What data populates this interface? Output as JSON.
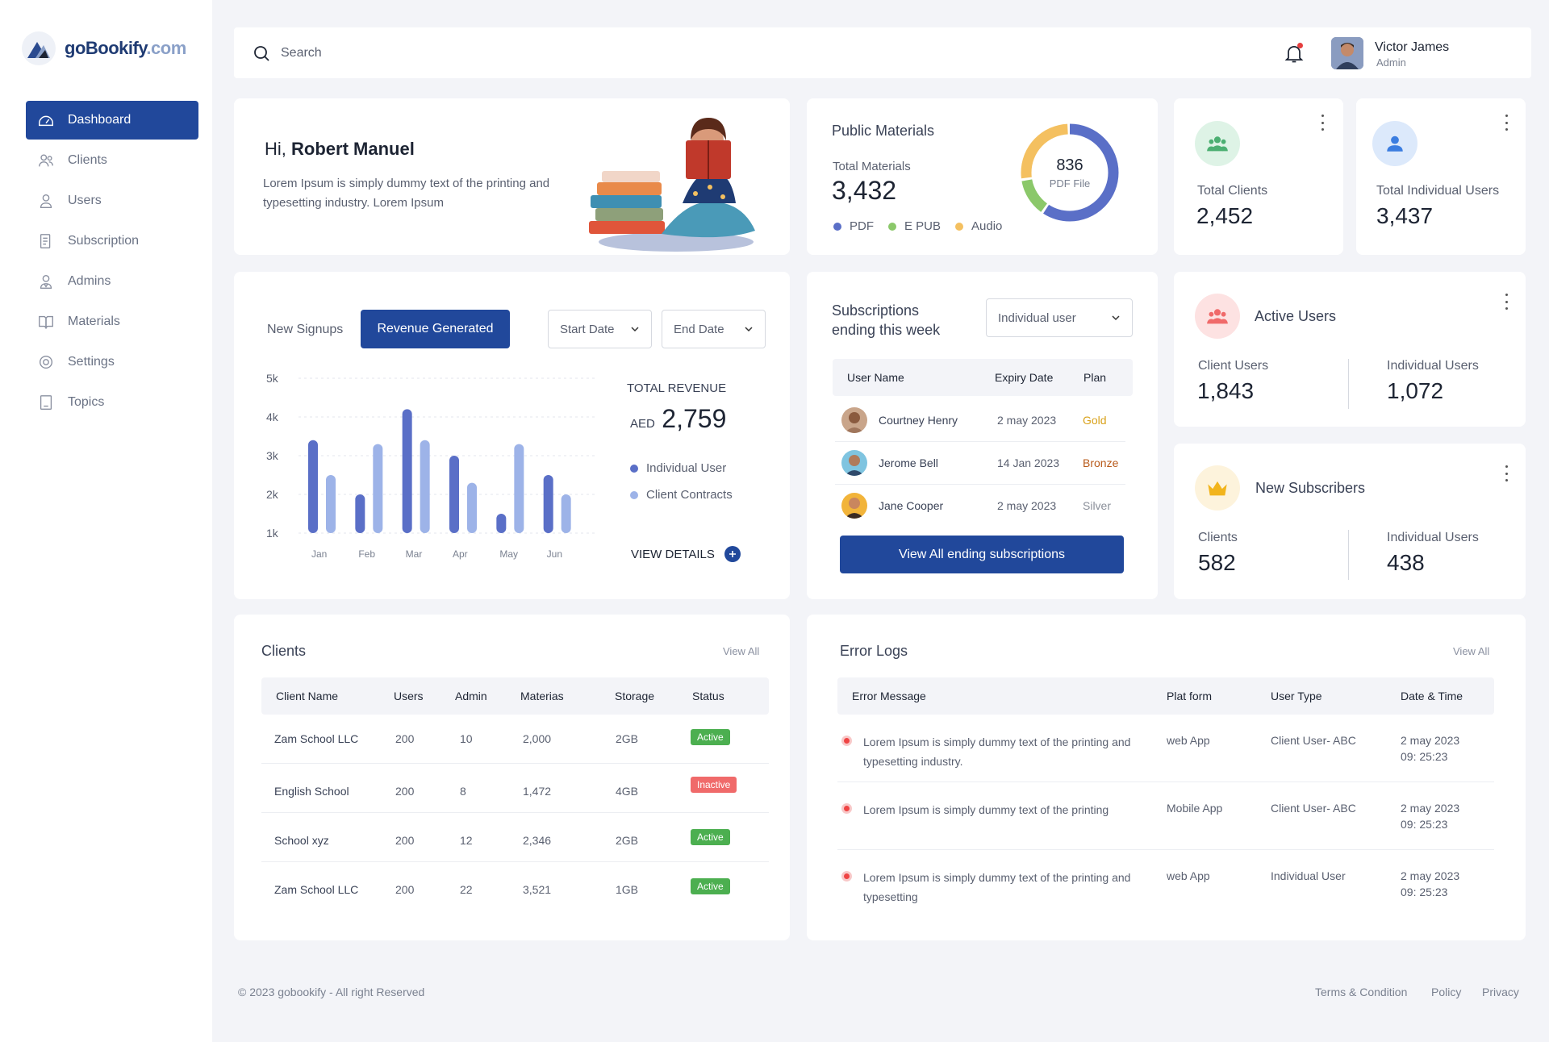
{
  "brand": {
    "name": "goBookify",
    "domain": ".com"
  },
  "sidebar": {
    "items": [
      {
        "label": "Dashboard",
        "icon": "dashboard-icon"
      },
      {
        "label": "Clients",
        "icon": "clients-icon"
      },
      {
        "label": "Users",
        "icon": "user-icon"
      },
      {
        "label": "Subscription",
        "icon": "subscription-icon"
      },
      {
        "label": "Admins",
        "icon": "admin-icon"
      },
      {
        "label": "Materials",
        "icon": "book-icon"
      },
      {
        "label": "Settings",
        "icon": "gear-icon"
      },
      {
        "label": "Topics",
        "icon": "topics-icon"
      }
    ]
  },
  "topbar": {
    "search_placeholder": "Search",
    "user": {
      "name": "Victor James",
      "role": "Admin"
    }
  },
  "welcome": {
    "greeting": "Hi,",
    "name": "Robert Manuel",
    "text": "Lorem Ipsum is simply dummy text of the printing and typesetting industry. Lorem Ipsum"
  },
  "public_materials": {
    "title": "Public Materials",
    "total_label": "Total Materials",
    "total_value": "3,432",
    "donut_value": "836",
    "donut_label": "PDF File",
    "legend": [
      {
        "label": "PDF",
        "color": "#5a6fc7"
      },
      {
        "label": "E PUB",
        "color": "#8bc86a"
      },
      {
        "label": "Audio",
        "color": "#f4c060"
      }
    ],
    "shares": {
      "pdf": 0.6,
      "epub": 0.13,
      "audio": 0.27
    }
  },
  "total_clients": {
    "label": "Total Clients",
    "value": "2,452"
  },
  "total_individual": {
    "label": "Total Individual Users",
    "value": "3,437"
  },
  "revenue": {
    "tab_signups": "New Signups",
    "tab_revenue": "Revenue Generated",
    "start_date": "Start Date",
    "end_date": "End Date",
    "total_label": "TOTAL REVENUE",
    "currency": "AED",
    "total_value": "2,759",
    "legend_individual": "Individual User",
    "legend_client": "Client Contracts",
    "view_details": "VIEW DETAILS"
  },
  "chart_data": {
    "type": "bar",
    "categories": [
      "Jan",
      "Feb",
      "Mar",
      "Apr",
      "May",
      "Jun"
    ],
    "series": [
      {
        "name": "Individual User",
        "values": [
          3400,
          2000,
          4200,
          3000,
          1500,
          2500
        ],
        "color": "#5a6fc7"
      },
      {
        "name": "Client Contracts",
        "values": [
          2500,
          3300,
          3400,
          2300,
          3300,
          2000
        ],
        "color": "#9db3e8"
      }
    ],
    "yticks": [
      "5k",
      "4k",
      "3k",
      "2k",
      "1k"
    ],
    "ylim": [
      1000,
      5000
    ]
  },
  "subscriptions": {
    "title_line1": "Subscriptions",
    "title_line2": "ending this week",
    "filter": "Individual user",
    "headers": [
      "User Name",
      "Expiry Date",
      "Plan"
    ],
    "rows": [
      {
        "name": "Courtney Henry",
        "date": "2 may 2023",
        "plan": "Gold",
        "color": "#d9a21b"
      },
      {
        "name": "Jerome Bell",
        "date": "14 Jan 2023",
        "plan": "Bronze",
        "color": "#b85a1a"
      },
      {
        "name": "Jane Cooper",
        "date": "2 may 2023",
        "plan": "Silver",
        "color": "#8a8f99"
      }
    ],
    "button": "View All ending subscriptions"
  },
  "active_users": {
    "title": "Active Users",
    "left_label": "Client Users",
    "left_value": "1,843",
    "right_label": "Individual Users",
    "right_value": "1,072"
  },
  "new_subscribers": {
    "title": "New Subscribers",
    "left_label": "Clients",
    "left_value": "582",
    "right_label": "Individual Users",
    "right_value": "438"
  },
  "clients": {
    "title": "Clients",
    "view_all": "View All",
    "headers": [
      "Client Name",
      "Users",
      "Admin",
      "Materias",
      "Storage",
      "Status"
    ],
    "rows": [
      [
        "Zam School LLC",
        "200",
        "10",
        "2,000",
        "2GB",
        "Active"
      ],
      [
        "English School",
        "200",
        "8",
        "1,472",
        "4GB",
        "Inactive"
      ],
      [
        "School xyz",
        "200",
        "12",
        "2,346",
        "2GB",
        "Active"
      ],
      [
        "Zam School LLC",
        "200",
        "22",
        "3,521",
        "1GB",
        "Active"
      ]
    ]
  },
  "errors": {
    "title": "Error Logs",
    "view_all": "View All",
    "headers": [
      "Error Message",
      "Plat form",
      "User Type",
      "Date & Time"
    ],
    "rows": [
      {
        "msg": "Lorem Ipsum is simply dummy text of the printing and typesetting industry.",
        "platform": "web App",
        "type": "Client User- ABC",
        "date": "2 may 2023",
        "time": "09: 25:23"
      },
      {
        "msg": "Lorem Ipsum is simply dummy text of the printing",
        "platform": "Mobile App",
        "type": "Client User- ABC",
        "date": "2 may 2023",
        "time": "09: 25:23"
      },
      {
        "msg": "Lorem Ipsum is simply dummy text of the printing and typesetting",
        "platform": "web App",
        "type": "Individual User",
        "date": "2 may 2023",
        "time": "09: 25:23"
      }
    ]
  },
  "footer": {
    "copyright": "© 2023 gobookify - All right Reserved",
    "links": [
      "Terms & Condition",
      "Policy",
      "Privacy"
    ]
  }
}
